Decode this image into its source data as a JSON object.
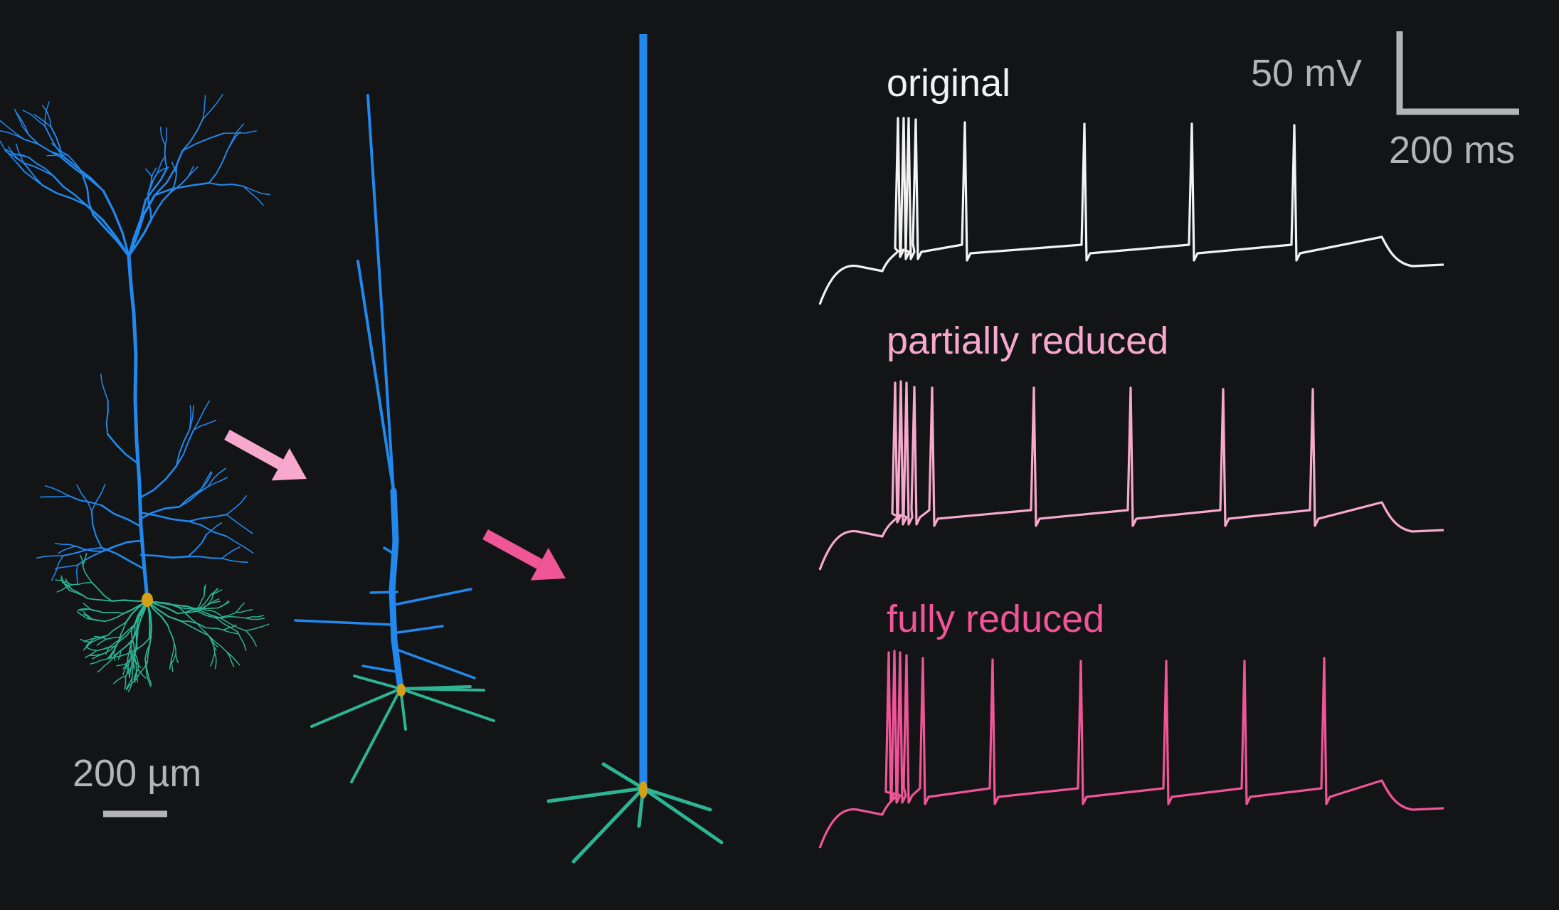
{
  "colors": {
    "background": "#131416",
    "apical": "#2189ee",
    "basal": "#2cb494",
    "soma": "#d4a017",
    "scale_bar": "#b4b4b4",
    "original": "#f2f2f2",
    "partially_reduced": "#f6a9cc",
    "fully_reduced": "#ef5597",
    "arrow_light": "#f6a9cc",
    "arrow_dark": "#ef5597"
  },
  "traces": [
    {
      "label": "original",
      "color_key": "original"
    },
    {
      "label": "partially reduced",
      "color_key": "partially_reduced"
    },
    {
      "label": "fully reduced",
      "color_key": "fully_reduced"
    }
  ],
  "scale_bars": {
    "voltage": "50 mV",
    "time": "200 ms",
    "distance": "200 µm"
  },
  "models": [
    "original-morphology",
    "partially-reduced-morphology",
    "fully-reduced-morphology"
  ]
}
